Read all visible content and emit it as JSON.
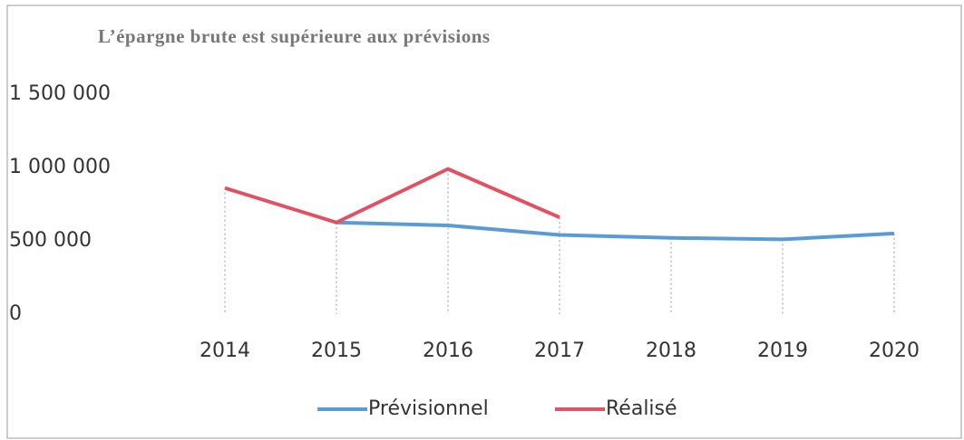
{
  "chart_data": {
    "type": "line",
    "title": "L’épargne brute est supérieure aux prévisions",
    "categories": [
      "2014",
      "2015",
      "2016",
      "2017",
      "2018",
      "2019",
      "2020"
    ],
    "series": [
      {
        "name": "Prévisionnel",
        "color": "#5b9bd5",
        "values": [
          null,
          625000,
          605000,
          540000,
          520000,
          510000,
          550000
        ]
      },
      {
        "name": "Réalisé",
        "color": "#e05263",
        "values": [
          860000,
          625000,
          990000,
          660000,
          null,
          null,
          null
        ]
      }
    ],
    "ylim": [
      0,
      1500000
    ],
    "yticks": [
      0,
      {
        "value": 500000,
        "label": "500 000"
      },
      {
        "value": 1000000,
        "label": "1 000 000"
      },
      {
        "value": 1500000,
        "label": "1 500 000"
      }
    ],
    "legend": "bottom"
  }
}
